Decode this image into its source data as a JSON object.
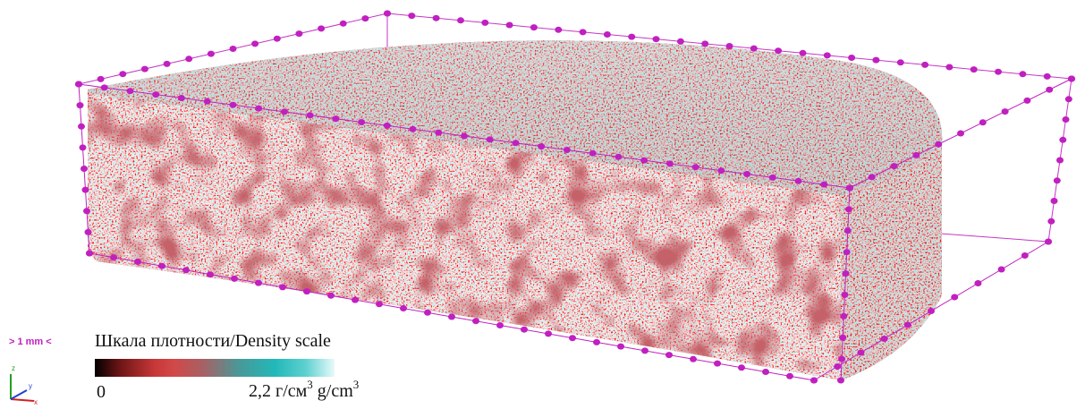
{
  "scale_bar": {
    "label": "> 1 mm <"
  },
  "legend": {
    "title": "Шкала плотности/Density scale",
    "min_label": "0",
    "max_value": "2,2",
    "max_unit_ru": "г/см",
    "max_unit_en": "g/cm",
    "unit_exponent": "3",
    "gradient_colors": [
      "#000000",
      "#6a1414",
      "#c83838",
      "#a86064",
      "#22b8b8",
      "#e8fafa"
    ]
  },
  "axes": {
    "x": "x",
    "y": "y",
    "z": "z"
  },
  "colors": {
    "bounding_box": "#c020c0",
    "low_density": "#c83838",
    "high_density": "#22b8b8"
  }
}
